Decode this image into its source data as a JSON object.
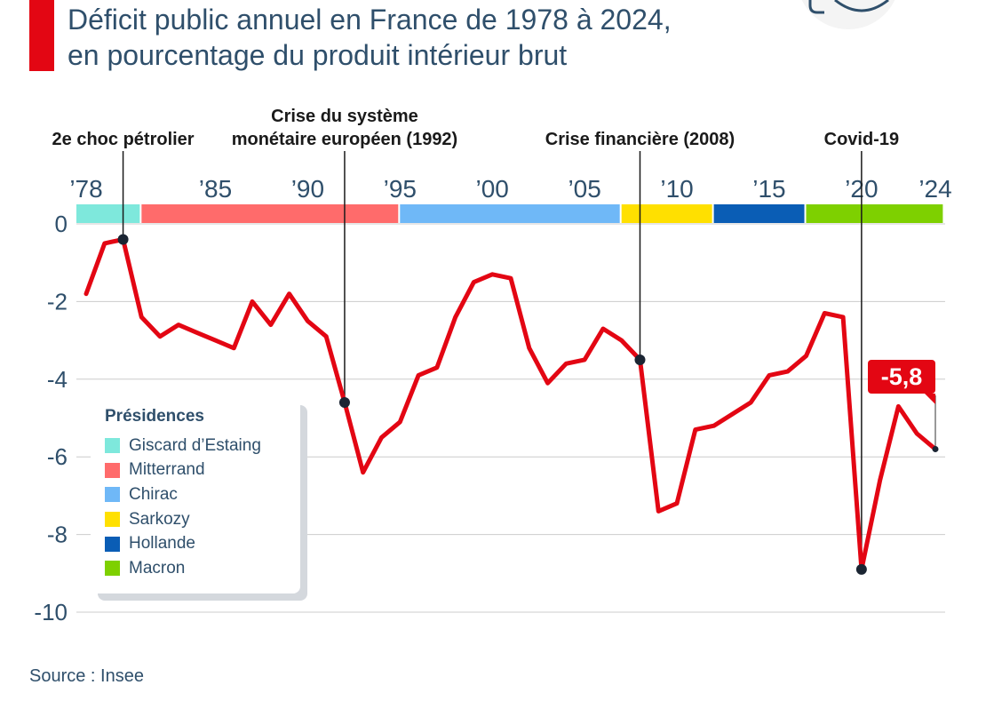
{
  "title": {
    "line1": "Déficit public annuel en France de 1978 à 2024,",
    "line2": "en pourcentage du produit intérieur brut"
  },
  "source": "Source : Insee",
  "colors": {
    "accent": "#e30613",
    "line": "#e30613",
    "text": "#2f4f6b",
    "grid": "#cccccc"
  },
  "legend": {
    "title": "Présidences",
    "items": [
      {
        "label": "Giscard d’Estaing",
        "color": "#7ee8dc"
      },
      {
        "label": "Mitterrand",
        "color": "#ff6b6b"
      },
      {
        "label": "Chirac",
        "color": "#6fb8f7"
      },
      {
        "label": "Sarkozy",
        "color": "#ffe000"
      },
      {
        "label": "Hollande",
        "color": "#0a5db5"
      },
      {
        "label": "Macron",
        "color": "#7ed000"
      }
    ]
  },
  "chart_data": {
    "type": "line",
    "x": [
      1978,
      1979,
      1980,
      1981,
      1982,
      1983,
      1984,
      1985,
      1986,
      1987,
      1988,
      1989,
      1990,
      1991,
      1992,
      1993,
      1994,
      1995,
      1996,
      1997,
      1998,
      1999,
      2000,
      2001,
      2002,
      2003,
      2004,
      2005,
      2006,
      2007,
      2008,
      2009,
      2010,
      2011,
      2012,
      2013,
      2014,
      2015,
      2016,
      2017,
      2018,
      2019,
      2020,
      2021,
      2022,
      2023,
      2024
    ],
    "series": [
      {
        "values": [
          -1.8,
          -0.5,
          -0.4,
          -2.4,
          -2.9,
          -2.6,
          -2.8,
          -3.0,
          -3.2,
          -2.0,
          -2.6,
          -1.8,
          -2.5,
          -2.9,
          -4.6,
          -6.4,
          -5.5,
          -5.1,
          -3.9,
          -3.7,
          -2.4,
          -1.5,
          -1.3,
          -1.4,
          -3.2,
          -4.1,
          -3.6,
          -3.5,
          -2.7,
          -3.0,
          -3.5,
          -7.4,
          -7.2,
          -5.3,
          -5.2,
          -4.9,
          -4.6,
          -3.9,
          -3.8,
          -3.4,
          -2.3,
          -2.4,
          -8.9,
          -6.6,
          -4.7,
          -5.4,
          -5.8
        ]
      }
    ],
    "ylim": [
      -10,
      0
    ],
    "yticks": [
      0,
      -2,
      -4,
      -6,
      -8,
      -10
    ],
    "xticks": [
      {
        "year": 1978,
        "label": "’78"
      },
      {
        "year": 1985,
        "label": "’85"
      },
      {
        "year": 1990,
        "label": "’90"
      },
      {
        "year": 1995,
        "label": "’95"
      },
      {
        "year": 2000,
        "label": "’00"
      },
      {
        "year": 2005,
        "label": "’05"
      },
      {
        "year": 2010,
        "label": "’10"
      },
      {
        "year": 2015,
        "label": "’15"
      },
      {
        "year": 2020,
        "label": "’20"
      },
      {
        "year": 2024,
        "label": "’24"
      }
    ],
    "presidencies": [
      {
        "name": "Giscard d’Estaing",
        "start": 1978,
        "end": 1981,
        "color": "#7ee8dc"
      },
      {
        "name": "Mitterrand",
        "start": 1981,
        "end": 1995,
        "color": "#ff6b6b"
      },
      {
        "name": "Chirac",
        "start": 1995,
        "end": 2007,
        "color": "#6fb8f7"
      },
      {
        "name": "Sarkozy",
        "start": 2007,
        "end": 2012,
        "color": "#ffe000"
      },
      {
        "name": "Hollande",
        "start": 2012,
        "end": 2017,
        "color": "#0a5db5"
      },
      {
        "name": "Macron",
        "start": 2017,
        "end": 2024.5,
        "color": "#7ed000"
      }
    ],
    "annotations": [
      {
        "year": 1980,
        "value": -0.4,
        "lines": [
          "2e choc pétrolier"
        ]
      },
      {
        "year": 1992,
        "value": -4.6,
        "lines": [
          "Crise du système",
          "monétaire européen (1992)"
        ]
      },
      {
        "year": 2008,
        "value": -3.5,
        "lines": [
          "Crise financière (2008)"
        ]
      },
      {
        "year": 2020,
        "value": -8.9,
        "lines": [
          "Covid-19"
        ]
      }
    ],
    "callout": {
      "year": 2024,
      "value": -5.8,
      "label": "-5,8"
    }
  }
}
